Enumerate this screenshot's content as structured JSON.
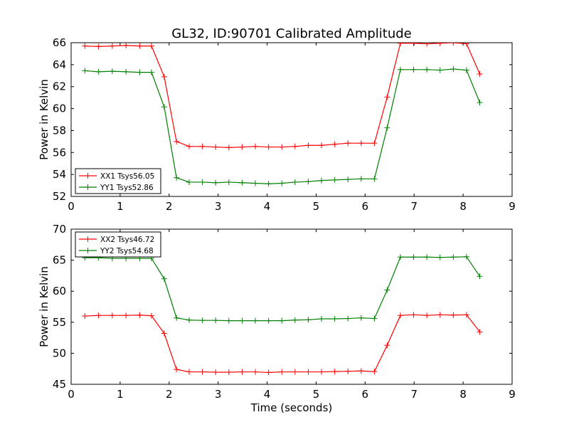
{
  "title": "GL32, ID:90701 Calibrated Amplitude",
  "colors": {
    "xx": "#ff0000",
    "yy": "#008000"
  },
  "chart_data": [
    {
      "type": "line",
      "title": "GL32, ID:90701 Calibrated Amplitude",
      "xlabel": "",
      "ylabel": "Power in Kelvin",
      "xlim": [
        0,
        9
      ],
      "ylim": [
        52,
        66
      ],
      "xticks": [
        "0",
        "1",
        "2",
        "3",
        "4",
        "5",
        "6",
        "7",
        "8",
        "9"
      ],
      "yticks": [
        "52",
        "54",
        "56",
        "58",
        "60",
        "62",
        "64",
        "66"
      ],
      "grid": false,
      "legend_position": "lower-left",
      "x": [
        0.28,
        0.56,
        0.84,
        1.12,
        1.4,
        1.64,
        1.9,
        2.15,
        2.41,
        2.68,
        2.95,
        3.22,
        3.49,
        3.76,
        4.03,
        4.3,
        4.57,
        4.84,
        5.11,
        5.38,
        5.65,
        5.92,
        6.19,
        6.45,
        6.72,
        6.99,
        7.26,
        7.53,
        7.8,
        8.07,
        8.34
      ],
      "series": [
        {
          "name": "XX1 Tsys56.05",
          "color": "#ff0000",
          "values": [
            65.7,
            65.65,
            65.7,
            65.75,
            65.7,
            65.7,
            62.9,
            57.0,
            56.55,
            56.55,
            56.5,
            56.45,
            56.5,
            56.55,
            56.5,
            56.5,
            56.55,
            56.65,
            56.65,
            56.75,
            56.85,
            56.85,
            56.85,
            61.05,
            65.95,
            65.95,
            65.9,
            65.95,
            66.0,
            65.9,
            63.15
          ]
        },
        {
          "name": "YY1 Tsys52.86",
          "color": "#008000",
          "values": [
            63.45,
            63.35,
            63.4,
            63.35,
            63.3,
            63.3,
            60.15,
            53.7,
            53.3,
            53.3,
            53.25,
            53.3,
            53.25,
            53.2,
            53.15,
            53.2,
            53.3,
            53.35,
            53.45,
            53.5,
            53.55,
            53.6,
            53.6,
            58.25,
            63.55,
            63.55,
            63.55,
            63.5,
            63.6,
            63.5,
            60.55
          ]
        }
      ]
    },
    {
      "type": "line",
      "title": "",
      "xlabel": "Time (seconds)",
      "ylabel": "Power in Kelvin",
      "xlim": [
        0,
        9
      ],
      "ylim": [
        45,
        70
      ],
      "xticks": [
        "0",
        "1",
        "2",
        "3",
        "4",
        "5",
        "6",
        "7",
        "8",
        "9"
      ],
      "yticks": [
        "45",
        "50",
        "55",
        "60",
        "65",
        "70"
      ],
      "grid": false,
      "legend_position": "upper-left",
      "x": [
        0.28,
        0.56,
        0.84,
        1.12,
        1.4,
        1.64,
        1.9,
        2.15,
        2.41,
        2.68,
        2.95,
        3.22,
        3.49,
        3.76,
        4.03,
        4.3,
        4.57,
        4.84,
        5.11,
        5.38,
        5.65,
        5.92,
        6.19,
        6.45,
        6.72,
        6.99,
        7.26,
        7.53,
        7.8,
        8.07,
        8.34
      ],
      "series": [
        {
          "name": "XX2 Tsys46.72",
          "color": "#ff0000",
          "values": [
            56.0,
            56.1,
            56.1,
            56.1,
            56.15,
            56.05,
            53.2,
            47.4,
            47.0,
            47.0,
            46.95,
            46.95,
            47.0,
            47.0,
            46.9,
            47.0,
            47.0,
            47.0,
            47.0,
            47.05,
            47.1,
            47.15,
            47.05,
            51.3,
            56.1,
            56.2,
            56.1,
            56.2,
            56.15,
            56.2,
            53.45
          ]
        },
        {
          "name": "YY2 Tsys54.68",
          "color": "#008000",
          "values": [
            65.4,
            65.4,
            65.3,
            65.3,
            65.3,
            65.3,
            62.0,
            55.7,
            55.35,
            55.3,
            55.3,
            55.25,
            55.25,
            55.25,
            55.25,
            55.25,
            55.35,
            55.4,
            55.55,
            55.55,
            55.6,
            55.7,
            55.6,
            60.2,
            65.5,
            65.5,
            65.5,
            65.45,
            65.5,
            65.55,
            62.4
          ]
        }
      ]
    }
  ]
}
